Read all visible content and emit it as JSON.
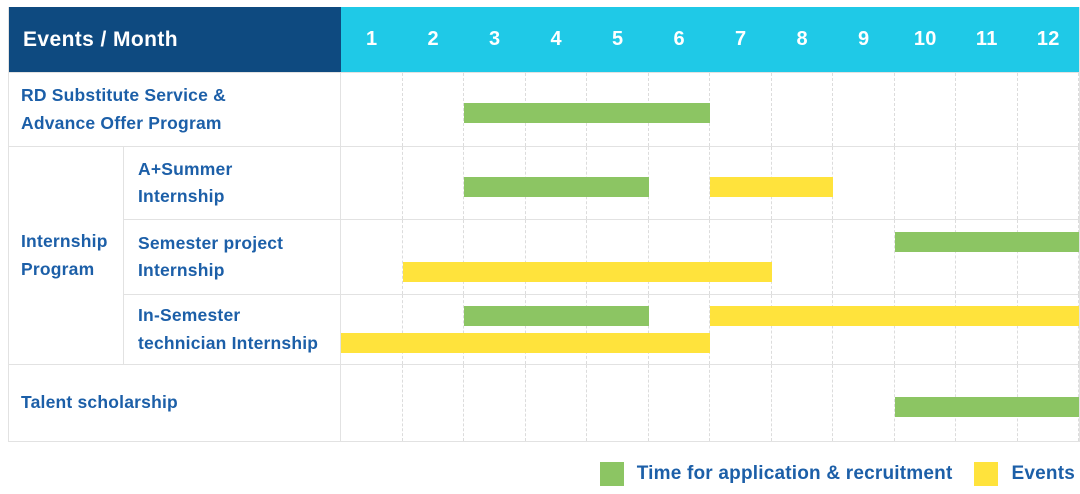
{
  "colors": {
    "header_bg": "#0E4A80",
    "months_bg": "#1FC9E7",
    "recruitment": "#8CC563",
    "events": "#FFE33C",
    "text": "#1C5FA8",
    "grid": "#E2E2E2",
    "grid_dashed": "#DCDCDC"
  },
  "header": {
    "corner_label": "Events / Month",
    "months": [
      "1",
      "2",
      "3",
      "4",
      "5",
      "6",
      "7",
      "8",
      "9",
      "10",
      "11",
      "12"
    ]
  },
  "legend": [
    {
      "key": "recruitment",
      "label": "Time for application & recruitment",
      "color": "#8CC563"
    },
    {
      "key": "events",
      "label": "Events",
      "color": "#FFE33C"
    }
  ],
  "chart_data": {
    "type": "bar",
    "variant": "gantt-timeline",
    "title": "Events / Month",
    "xlabel": "Month",
    "x_ticks": [
      "1",
      "2",
      "3",
      "4",
      "5",
      "6",
      "7",
      "8",
      "9",
      "10",
      "11",
      "12"
    ],
    "x_range": [
      1,
      12
    ],
    "grid": true,
    "legend_position": "bottom-right",
    "span_semantics": "start and end are inclusive month numbers; bar runs from start of 'start' month to end of 'end' month",
    "rows": [
      {
        "id": "rd_substitute",
        "group": null,
        "label": "RD Substitute Service & Advance Offer Program",
        "label_lines": [
          "RD Substitute Service &",
          "Advance Offer Program"
        ],
        "bars": [
          {
            "type": "recruitment",
            "start": 3,
            "end": 6,
            "band": "full"
          }
        ]
      },
      {
        "id": "a_plus_summer",
        "group": {
          "id": "internship_program",
          "label": "Internship Program",
          "label_lines": [
            "Internship",
            "Program"
          ]
        },
        "label": "A+Summer Internship",
        "label_lines": [
          "A+Summer",
          "Internship"
        ],
        "bars": [
          {
            "type": "recruitment",
            "start": 3,
            "end": 5,
            "band": "full"
          },
          {
            "type": "events",
            "start": 7,
            "end": 8,
            "band": "full"
          }
        ]
      },
      {
        "id": "semester_project",
        "group": {
          "id": "internship_program",
          "label": "Internship Program",
          "label_lines": [
            "Internship",
            "Program"
          ]
        },
        "label": "Semester project Internship",
        "label_lines": [
          "Semester project",
          "Internship"
        ],
        "bars": [
          {
            "type": "recruitment",
            "start": 10,
            "end": 12,
            "band": "top"
          },
          {
            "type": "events",
            "start": 2,
            "end": 7,
            "band": "bottom"
          }
        ]
      },
      {
        "id": "in_semester_technician",
        "group": {
          "id": "internship_program",
          "label": "Internship Program",
          "label_lines": [
            "Internship",
            "Program"
          ]
        },
        "label": "In-Semester technician Internship",
        "label_lines": [
          "In-Semester",
          "technician Internship"
        ],
        "bars": [
          {
            "type": "recruitment",
            "start": 3,
            "end": 5,
            "band": "top"
          },
          {
            "type": "events",
            "start": 7,
            "end": 12,
            "band": "top"
          },
          {
            "type": "events",
            "start": 1,
            "end": 6,
            "band": "bottom"
          }
        ]
      },
      {
        "id": "talent_scholarship",
        "group": null,
        "label": "Talent scholarship",
        "label_lines": [
          "Talent scholarship"
        ],
        "bars": [
          {
            "type": "recruitment",
            "start": 10,
            "end": 12,
            "band": "full"
          }
        ]
      }
    ]
  }
}
